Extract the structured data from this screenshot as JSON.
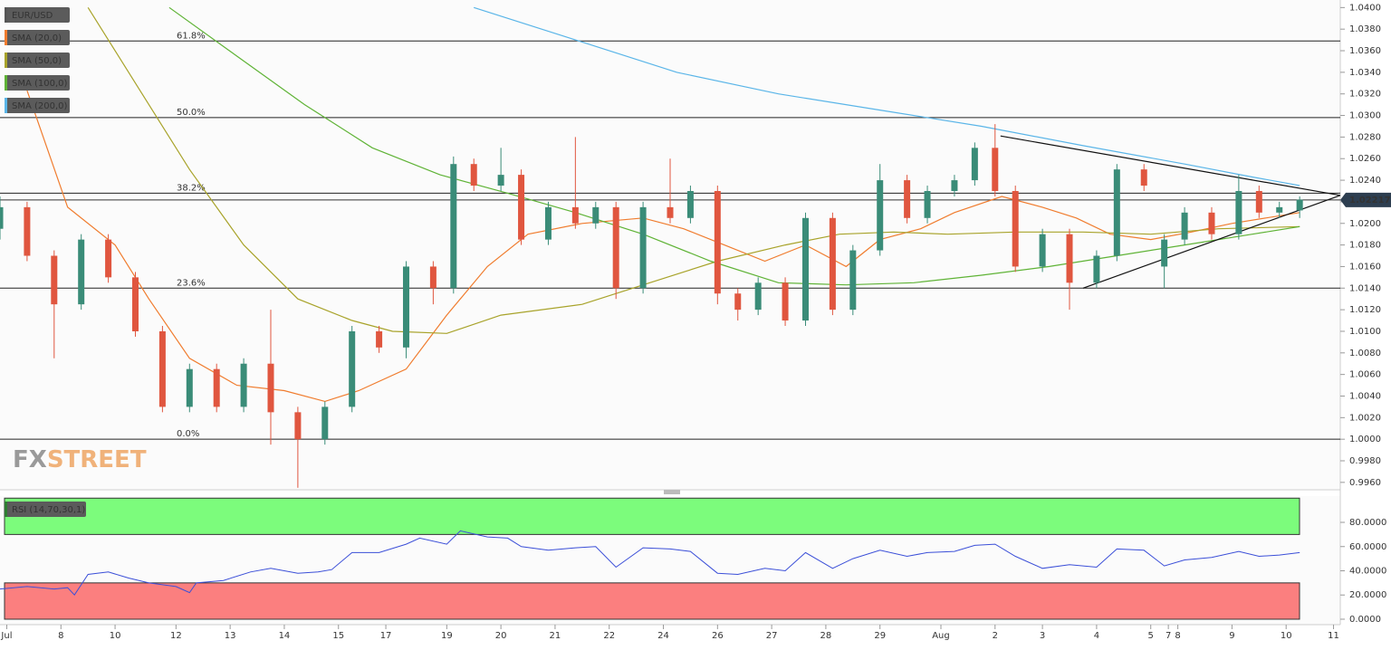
{
  "chart_data": [
    {
      "type": "candlestick",
      "symbol": "EUR/USD",
      "colors": {
        "up": "#3a8c78",
        "down": "#e0563f"
      },
      "xlim": [
        0,
        198
      ],
      "ylim": [
        0.9954,
        1.0407
      ],
      "xticks": [
        {
          "value": 1,
          "label": "Jul"
        },
        {
          "value": 9,
          "label": "8"
        },
        {
          "value": 17,
          "label": "10"
        },
        {
          "value": 26,
          "label": "12"
        },
        {
          "value": 34,
          "label": "13"
        },
        {
          "value": 42,
          "label": "14"
        },
        {
          "value": 50,
          "label": "15"
        },
        {
          "value": 57,
          "label": "17"
        },
        {
          "value": 66,
          "label": "19"
        },
        {
          "value": 74,
          "label": "20"
        },
        {
          "value": 82,
          "label": "21"
        },
        {
          "value": 90,
          "label": "22"
        },
        {
          "value": 98,
          "label": "24"
        },
        {
          "value": 106,
          "label": "26"
        },
        {
          "value": 114,
          "label": "27"
        },
        {
          "value": 122,
          "label": "28"
        },
        {
          "value": 130,
          "label": "29"
        },
        {
          "value": 139,
          "label": "Aug"
        },
        {
          "value": 147,
          "label": "2"
        },
        {
          "value": 154,
          "label": "3"
        },
        {
          "value": 162,
          "label": "4"
        },
        {
          "value": 170,
          "label": "5"
        },
        {
          "value": 172.6,
          "label": "7"
        },
        {
          "value": 174,
          "label": "8"
        },
        {
          "value": 182,
          "label": "9"
        },
        {
          "value": 190,
          "label": "10"
        },
        {
          "value": 197,
          "label": "11"
        }
      ],
      "yticks": [
        {
          "value": 0.996,
          "label": "0.9960"
        },
        {
          "value": 0.998,
          "label": "0.9980"
        },
        {
          "value": 1,
          "label": "1.0000"
        },
        {
          "value": 1.002,
          "label": "1.0020"
        },
        {
          "value": 1.004,
          "label": "1.0040"
        },
        {
          "value": 1.006,
          "label": "1.0060"
        },
        {
          "value": 1.008,
          "label": "1.0080"
        },
        {
          "value": 1.01,
          "label": "1.0100"
        },
        {
          "value": 1.012,
          "label": "1.0120"
        },
        {
          "value": 1.014,
          "label": "1.0140"
        },
        {
          "value": 1.016,
          "label": "1.0160"
        },
        {
          "value": 1.018,
          "label": "1.0180"
        },
        {
          "value": 1.02,
          "label": "1.0200"
        },
        {
          "value": 1.022,
          "label": "1.0220"
        },
        {
          "value": 1.024,
          "label": "1.0240"
        },
        {
          "value": 1.026,
          "label": "1.0260"
        },
        {
          "value": 1.028,
          "label": "1.0280"
        },
        {
          "value": 1.03,
          "label": "1.0300"
        },
        {
          "value": 1.032,
          "label": "1.0320"
        },
        {
          "value": 1.034,
          "label": "1.0340"
        },
        {
          "value": 1.036,
          "label": "1.0360"
        },
        {
          "value": 1.038,
          "label": "1.0380"
        },
        {
          "value": 1.04,
          "label": "1.0400"
        }
      ],
      "x": [
        0,
        4,
        8,
        12,
        16,
        20,
        24,
        28,
        32,
        36,
        40,
        44,
        48,
        52,
        56,
        60,
        64,
        67,
        70,
        74,
        77,
        81,
        85,
        88,
        91,
        95,
        99,
        102,
        106,
        109,
        112,
        116,
        119,
        123,
        126,
        130,
        134,
        137,
        141,
        144,
        147,
        150,
        154,
        158,
        162,
        165,
        169,
        172,
        175,
        179,
        183,
        186,
        189,
        192
      ],
      "open": [
        1.0195,
        1.0215,
        1.017,
        1.0125,
        1.0185,
        1.015,
        1.01,
        1.003,
        1.0065,
        1.003,
        1.007,
        1.0025,
        1.0,
        1.003,
        1.01,
        1.0085,
        1.016,
        1.014,
        1.0255,
        1.0235,
        1.0245,
        1.0185,
        1.0215,
        1.02,
        1.0215,
        1.014,
        1.0215,
        1.0205,
        1.023,
        1.0135,
        1.012,
        1.0145,
        1.011,
        1.0205,
        1.012,
        1.0175,
        1.024,
        1.0205,
        1.023,
        1.024,
        1.027,
        1.023,
        1.016,
        1.019,
        1.0145,
        1.017,
        1.025,
        1.016,
        1.0185,
        1.021,
        1.019,
        1.023,
        1.021,
        1.0212
      ],
      "high": [
        1.0225,
        1.022,
        1.0175,
        1.019,
        1.019,
        1.0155,
        1.0105,
        1.007,
        1.007,
        1.0075,
        1.012,
        1.003,
        1.0035,
        1.0105,
        1.0105,
        1.0165,
        1.0165,
        1.0262,
        1.026,
        1.027,
        1.025,
        1.022,
        1.028,
        1.022,
        1.022,
        1.022,
        1.026,
        1.0235,
        1.0235,
        1.014,
        1.015,
        1.015,
        1.021,
        1.021,
        1.018,
        1.0255,
        1.0245,
        1.0235,
        1.0245,
        1.0275,
        1.0292,
        1.0235,
        1.0195,
        1.0195,
        1.0175,
        1.0255,
        1.0255,
        1.019,
        1.0215,
        1.0215,
        1.0245,
        1.0235,
        1.022,
        1.0225
      ],
      "low": [
        1.0185,
        1.0165,
        1.0075,
        1.012,
        1.0145,
        1.0095,
        1.0025,
        1.0025,
        1.0025,
        1.0025,
        0.9995,
        0.9955,
        0.9995,
        1.0025,
        1.008,
        1.0075,
        1.0125,
        1.0135,
        1.023,
        1.023,
        1.018,
        1.018,
        1.0195,
        1.0195,
        1.013,
        1.0135,
        1.02,
        1.02,
        1.0125,
        1.011,
        1.0115,
        1.0105,
        1.0105,
        1.0115,
        1.0115,
        1.017,
        1.02,
        1.02,
        1.0225,
        1.0235,
        1.0225,
        1.0155,
        1.0155,
        1.012,
        1.014,
        1.0165,
        1.023,
        1.014,
        1.018,
        1.0185,
        1.0185,
        1.0205,
        1.0205,
        1.0205
      ],
      "close": [
        1.0215,
        1.017,
        1.0125,
        1.0185,
        1.015,
        1.01,
        1.003,
        1.0065,
        1.003,
        1.007,
        1.0025,
        1.0,
        1.003,
        1.01,
        1.0085,
        1.016,
        1.014,
        1.0255,
        1.0235,
        1.0245,
        1.0185,
        1.0215,
        1.02,
        1.0215,
        1.014,
        1.0215,
        1.0205,
        1.023,
        1.0135,
        1.012,
        1.0145,
        1.011,
        1.0205,
        1.012,
        1.0175,
        1.024,
        1.0205,
        1.023,
        1.024,
        1.027,
        1.023,
        1.016,
        1.019,
        1.0145,
        1.017,
        1.025,
        1.0235,
        1.0185,
        1.021,
        1.019,
        1.023,
        1.021,
        1.0215,
        1.0222
      ],
      "series": [
        {
          "name": "SMA (20,0)",
          "color": "#f07c2e",
          "x": [
            4,
            10,
            17,
            22,
            28,
            35,
            42,
            48,
            53,
            60,
            66,
            72,
            78,
            86,
            95,
            101,
            107,
            113,
            119,
            125,
            130,
            136,
            141,
            148,
            154,
            159,
            164,
            170,
            176,
            182,
            192
          ],
          "values": [
            1.0323,
            1.0215,
            1.018,
            1.013,
            1.0075,
            1.005,
            1.0045,
            1.0035,
            1.0045,
            1.0065,
            1.0115,
            1.016,
            1.019,
            1.02,
            1.0205,
            1.0195,
            1.018,
            1.0165,
            1.018,
            1.016,
            1.0185,
            1.0195,
            1.021,
            1.0225,
            1.0215,
            1.0205,
            1.019,
            1.0185,
            1.0192,
            1.02,
            1.021
          ]
        },
        {
          "name": "SMA (50,0)",
          "color": "#a8a32a",
          "x": [
            13,
            20,
            28,
            36,
            44,
            52,
            58,
            66,
            74,
            86,
            96,
            106,
            116,
            124,
            132,
            140,
            150,
            160,
            170,
            180,
            192
          ],
          "values": [
            1.04,
            1.033,
            1.025,
            1.018,
            1.013,
            1.011,
            1.01,
            1.0098,
            1.0115,
            1.0125,
            1.0145,
            1.0165,
            1.018,
            1.019,
            1.0192,
            1.019,
            1.0192,
            1.0192,
            1.019,
            1.0195,
            1.0197
          ]
        },
        {
          "name": "SMA (100,0)",
          "color": "#5fb336",
          "x": [
            25,
            35,
            45,
            55,
            65,
            75,
            85,
            95,
            105,
            115,
            125,
            135,
            145,
            155,
            165,
            175,
            185,
            192
          ],
          "values": [
            1.04,
            1.0355,
            1.031,
            1.027,
            1.0245,
            1.0228,
            1.021,
            1.019,
            1.0165,
            1.0145,
            1.0143,
            1.0145,
            1.0152,
            1.016,
            1.017,
            1.018,
            1.019,
            1.0197
          ]
        },
        {
          "name": "SMA (200,0)",
          "color": "#5ab5e8",
          "x": [
            70,
            85,
            100,
            115,
            130,
            145,
            160,
            175,
            185,
            192
          ],
          "values": [
            1.04,
            1.037,
            1.034,
            1.032,
            1.0305,
            1.029,
            1.0272,
            1.0255,
            1.0243,
            1.0235
          ]
        }
      ],
      "fib_levels": [
        {
          "label": "61.8%",
          "value": 1.0369
        },
        {
          "label": "50.0%",
          "value": 1.0298
        },
        {
          "label": "38.2%",
          "value": 1.0228
        },
        {
          "label": "23.6%",
          "value": 1.014
        },
        {
          "label": "0.0%",
          "value": 1.0
        }
      ],
      "trendlines": [
        {
          "x": [
            147.8,
            198
          ],
          "values": [
            1.0281,
            1.0226
          ]
        },
        {
          "x": [
            160,
            198
          ],
          "values": [
            1.014,
            1.0226
          ]
        }
      ],
      "last_price": 1.02217,
      "watermark": [
        "FX",
        "STREET"
      ]
    },
    {
      "type": "line",
      "name": "RSI (14,70,30,1)",
      "color": "#3b4fd8",
      "xlim": [
        0,
        198
      ],
      "ylim": [
        -4.5,
        100.2
      ],
      "overbought": [
        70,
        100
      ],
      "oversold": [
        0,
        30
      ],
      "yticks": [
        {
          "value": 0,
          "label": "0.0000"
        },
        {
          "value": 20,
          "label": "20.0000"
        },
        {
          "value": 40,
          "label": "40.0000"
        },
        {
          "value": 60,
          "label": "60.0000"
        },
        {
          "value": 80,
          "label": "80.0000"
        }
      ],
      "x": [
        0,
        4,
        8,
        10,
        11,
        13,
        16,
        19,
        22,
        26,
        28,
        29,
        33,
        37,
        40,
        44,
        47,
        49,
        52,
        56,
        60,
        62,
        66,
        68,
        72,
        75,
        77,
        81,
        85,
        88,
        91,
        95,
        99,
        102,
        106,
        109,
        113,
        116,
        119,
        123,
        126,
        130,
        134,
        137,
        141,
        144,
        147,
        150,
        154,
        158,
        162,
        165,
        169,
        172,
        175,
        179,
        183,
        186,
        189,
        192
      ],
      "values": [
        25,
        27,
        25,
        26,
        20,
        37,
        39,
        34,
        30,
        27,
        22,
        30,
        32,
        39,
        42,
        38,
        39,
        41,
        55,
        55,
        62,
        67,
        62,
        73,
        68,
        67,
        60,
        57,
        59,
        60,
        43,
        59,
        58,
        56,
        38,
        37,
        42,
        40,
        55,
        42,
        50,
        57,
        52,
        55,
        56,
        61,
        62,
        52,
        42,
        45,
        43,
        58,
        57,
        44,
        49,
        51,
        56,
        52,
        53,
        55
      ]
    }
  ]
}
